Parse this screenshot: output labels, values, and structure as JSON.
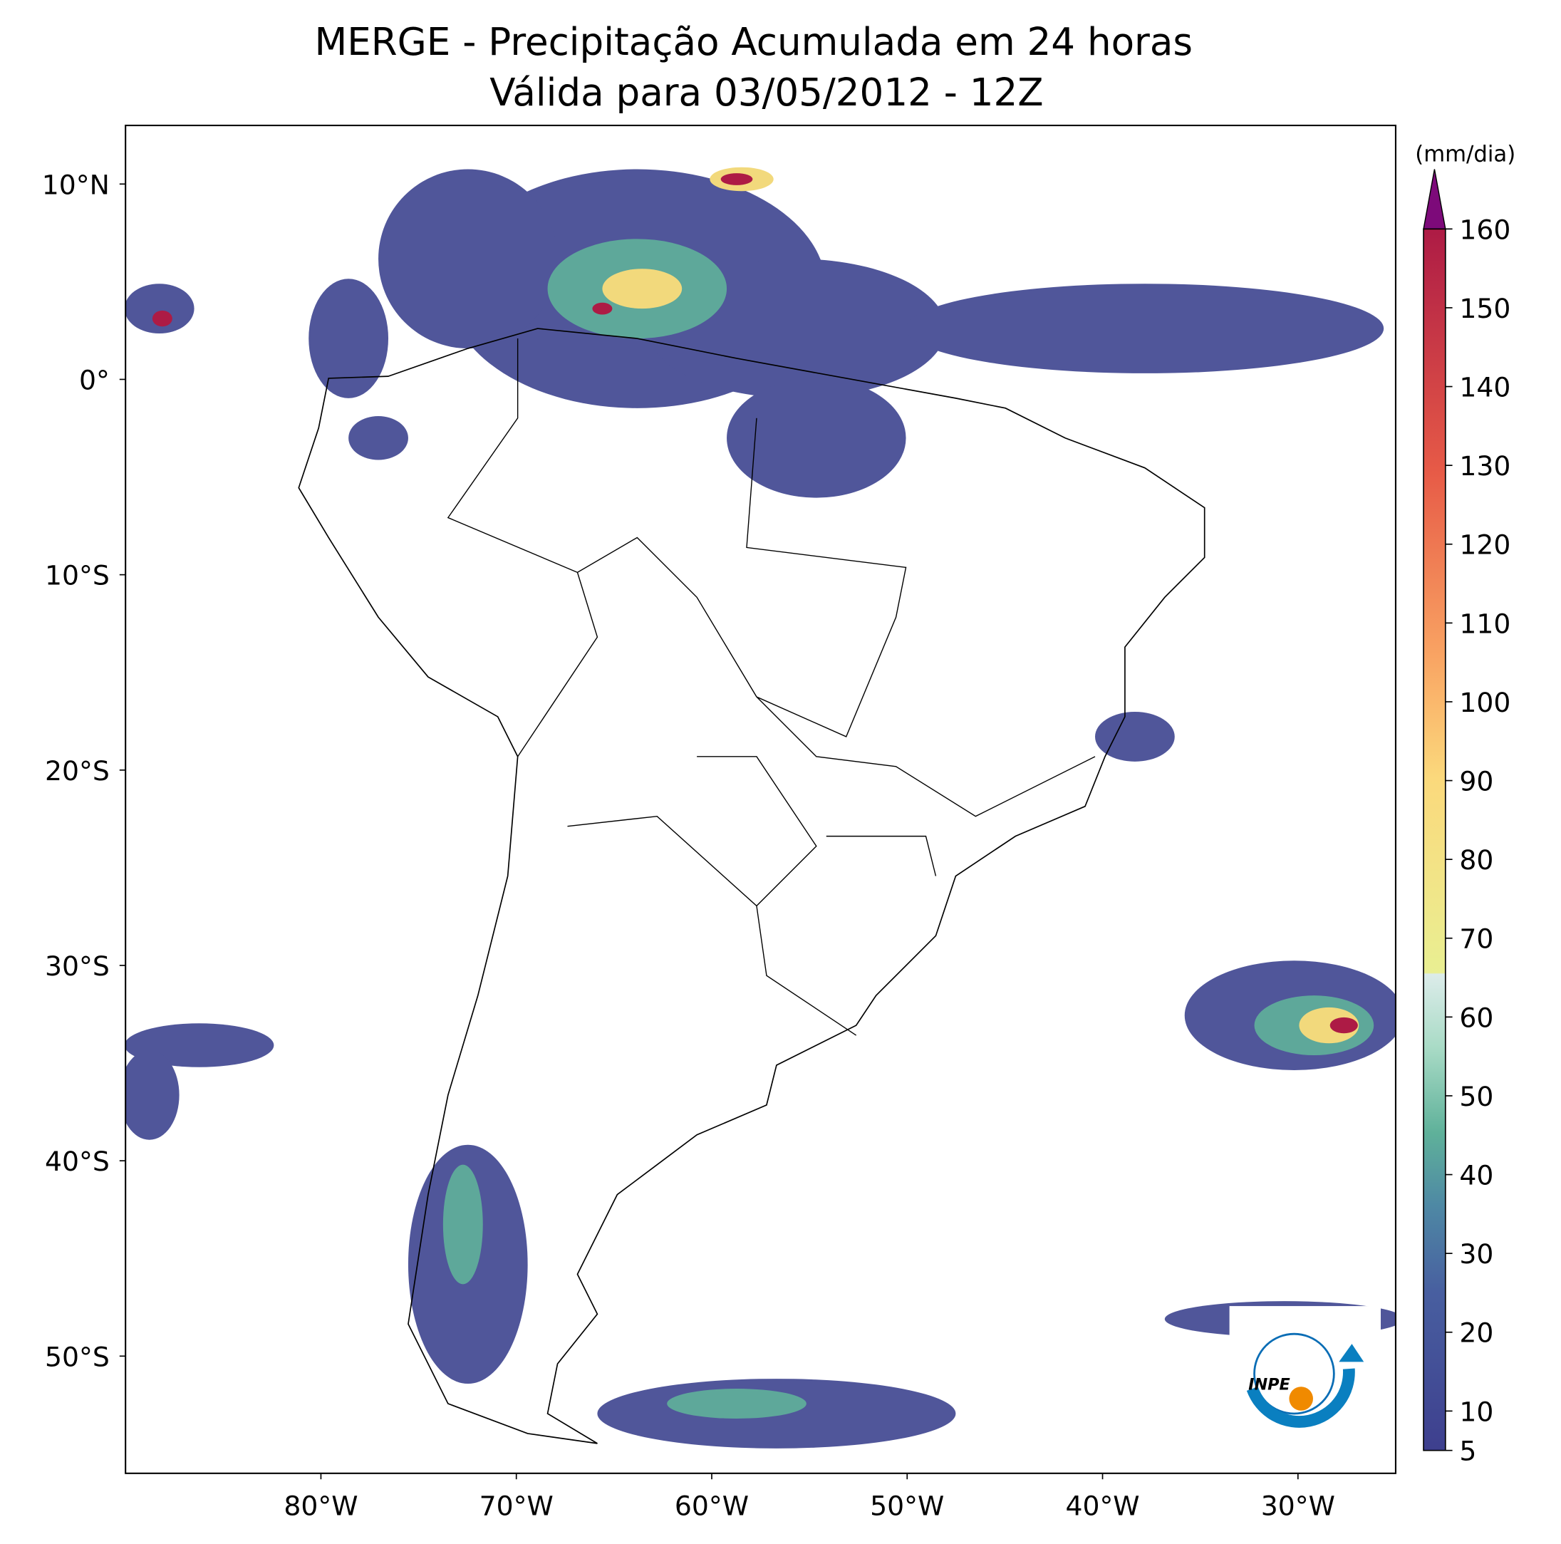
{
  "title": [
    "MERGE - Precipitação Acumulada em 24 horas",
    "Válida para 03/05/2012 - 12Z"
  ],
  "map": {
    "xlim": [
      -90,
      -25
    ],
    "ylim": [
      -56,
      13
    ],
    "lat_ticks": [
      {
        "value": 10,
        "label": "10°N"
      },
      {
        "value": 0,
        "label": "0°"
      },
      {
        "value": -10,
        "label": "10°S"
      },
      {
        "value": -20,
        "label": "20°S"
      },
      {
        "value": -30,
        "label": "30°S"
      },
      {
        "value": -40,
        "label": "40°S"
      },
      {
        "value": -50,
        "label": "50°S"
      }
    ],
    "lon_ticks": [
      {
        "value": -80,
        "label": "80°W"
      },
      {
        "value": -70,
        "label": "70°W"
      },
      {
        "value": -60,
        "label": "60°W"
      },
      {
        "value": -50,
        "label": "50°W"
      },
      {
        "value": -40,
        "label": "40°W"
      },
      {
        "value": -30,
        "label": "30°W"
      }
    ]
  },
  "colorbar": {
    "unit": "(mm/dia)",
    "ticks": [
      5,
      10,
      20,
      30,
      40,
      50,
      60,
      70,
      80,
      90,
      100,
      110,
      120,
      130,
      140,
      150,
      160
    ]
  },
  "logo_text": "INPE"
}
